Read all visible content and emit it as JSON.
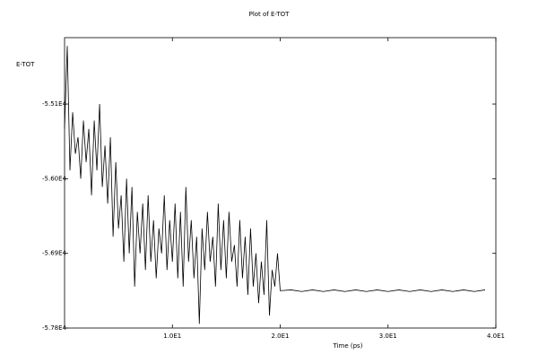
{
  "chart_data": {
    "type": "line",
    "title": "Plot of E-TOT",
    "y_label": "E-TOT",
    "x_label": "Time (ps)",
    "color": "#000000",
    "xlim": [
      0,
      40
    ],
    "ylim": [
      -57800,
      -54300
    ],
    "xticks": [
      {
        "value": 10,
        "label": "1.0E1"
      },
      {
        "value": 20,
        "label": "2.0E1"
      },
      {
        "value": 30,
        "label": "3.0E1"
      },
      {
        "value": 40,
        "label": "4.0E1"
      }
    ],
    "yticks": [
      {
        "value": -55100,
        "label": "-5.51E4"
      },
      {
        "value": -56000,
        "label": "-5.60E4"
      },
      {
        "value": -56900,
        "label": "-5.69E4"
      },
      {
        "value": -57800,
        "label": "-5.78E4"
      }
    ],
    "x": [
      0,
      0.25,
      0.5,
      0.75,
      1,
      1.25,
      1.5,
      1.75,
      2,
      2.25,
      2.5,
      2.75,
      3,
      3.25,
      3.5,
      3.75,
      4,
      4.25,
      4.5,
      4.75,
      5,
      5.25,
      5.5,
      5.75,
      6,
      6.25,
      6.5,
      6.75,
      7,
      7.25,
      7.5,
      7.75,
      8,
      8.25,
      8.5,
      8.75,
      9,
      9.25,
      9.5,
      9.75,
      10,
      10.25,
      10.5,
      10.75,
      11,
      11.25,
      11.5,
      11.75,
      12,
      12.25,
      12.5,
      12.75,
      13,
      13.25,
      13.5,
      13.75,
      14,
      14.25,
      14.5,
      14.75,
      15,
      15.25,
      15.5,
      15.75,
      16,
      16.25,
      16.5,
      16.75,
      17,
      17.25,
      17.5,
      17.75,
      18,
      18.25,
      18.5,
      18.75,
      19,
      19.25,
      19.5,
      19.75,
      20,
      21,
      22,
      23,
      24,
      25,
      26,
      27,
      28,
      29,
      30,
      31,
      32,
      33,
      34,
      35,
      36,
      37,
      38,
      39
    ],
    "values": [
      -55400,
      -54400,
      -55900,
      -55200,
      -55700,
      -55500,
      -56000,
      -55300,
      -55800,
      -55400,
      -56200,
      -55300,
      -55900,
      -55100,
      -56100,
      -55600,
      -56300,
      -55500,
      -56700,
      -55800,
      -56600,
      -56200,
      -57000,
      -56000,
      -56900,
      -56100,
      -57300,
      -56400,
      -56900,
      -56300,
      -57100,
      -56200,
      -57000,
      -56500,
      -57200,
      -56600,
      -56900,
      -56200,
      -57100,
      -56500,
      -57000,
      -56300,
      -57200,
      -56400,
      -57300,
      -56100,
      -57000,
      -56500,
      -57200,
      -56700,
      -57750,
      -56600,
      -57100,
      -56400,
      -57000,
      -56700,
      -57300,
      -56300,
      -57100,
      -56500,
      -57200,
      -56400,
      -57000,
      -56800,
      -57300,
      -56500,
      -57200,
      -56700,
      -57400,
      -56600,
      -57300,
      -56900,
      -57500,
      -57000,
      -57400,
      -56500,
      -57650,
      -57100,
      -57300,
      -56900,
      -57350,
      -57340,
      -57360,
      -57340,
      -57360,
      -57340,
      -57360,
      -57340,
      -57360,
      -57340,
      -57360,
      -57340,
      -57360,
      -57340,
      -57360,
      -57340,
      -57360,
      -57340,
      -57360,
      -57340
    ]
  }
}
